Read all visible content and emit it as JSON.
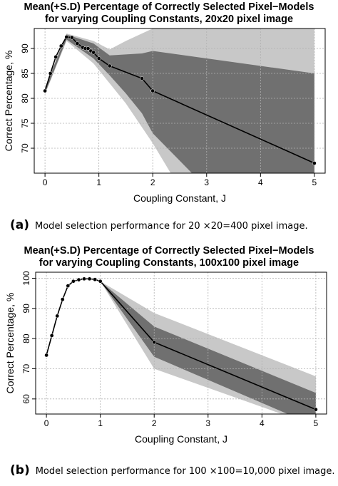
{
  "figures": [
    {
      "title_line1": "Mean(+S.D) Percentage of Correctly Selected Pixel−Models",
      "title_line2": "for varying Coupling Constants, 20x20 pixel image",
      "caption_label": "(a)",
      "caption_text": "Model selection performance for 20 ×20=400 pixel image."
    },
    {
      "title_line1": "Mean(+S.D) Percentage of Correctly Selected Pixel−Models",
      "title_line2": "for varying Coupling Constants, 100x100 pixel image",
      "caption_label": "(b)",
      "caption_text": "Model selection performance for 100 ×100=10,000 pixel image."
    }
  ],
  "chart_data": [
    {
      "type": "line",
      "title": "Mean(+S.D) Percentage of Correctly Selected Pixel−Models for varying Coupling Constants, 20x20 pixel image",
      "xlabel": "Coupling Constant, J",
      "ylabel": "Correct Percentage, %",
      "xlim": [
        -0.2,
        5.2
      ],
      "ylim": [
        65,
        94
      ],
      "xticks": [
        0,
        1,
        2,
        3,
        4,
        5
      ],
      "yticks": [
        70,
        75,
        80,
        85,
        90
      ],
      "grid": true,
      "series": [
        {
          "x": [
            0,
            0.1,
            0.2,
            0.3,
            0.4,
            0.5,
            0.6,
            0.7,
            0.75,
            0.8,
            0.85,
            0.9,
            1.0,
            1.2,
            1.8,
            2.0,
            5.0
          ],
          "y": [
            81.5,
            85.0,
            88.3,
            90.5,
            92.3,
            92.2,
            91.0,
            90.2,
            90.0,
            90.0,
            89.5,
            89.2,
            88.0,
            86.5,
            84.0,
            81.5,
            67.0
          ],
          "sd1_band": {
            "x": [
              0,
              0.4,
              0.9,
              1.2,
              1.5,
              1.8,
              2.0,
              3.0,
              4.0,
              5.0
            ],
            "upper": [
              82,
              92.8,
              91.0,
              88.6,
              88.8,
              89.0,
              89.5,
              88.0,
              86.5,
              85.0
            ],
            "lower": [
              81,
              91.8,
              88.0,
              84.6,
              81.0,
              77.0,
              73.0,
              62.0,
              62.0,
              62.0
            ]
          },
          "sd2_band": {
            "x": [
              0,
              0.4,
              0.9,
              1.2,
              1.5,
              2.0,
              2.5,
              3.0,
              4.0,
              5.0
            ],
            "upper": [
              82.2,
              93.0,
              91.5,
              89.8,
              91.5,
              94.0,
              94.0,
              94.0,
              94.0,
              94.0
            ],
            "lower": [
              80.8,
              91.5,
              87.0,
              83.0,
              79.0,
              71.0,
              62.0,
              62.0,
              62.0,
              62.0
            ]
          }
        }
      ]
    },
    {
      "type": "line",
      "title": "Mean(+S.D) Percentage of Correctly Selected Pixel−Models for varying Coupling Constants, 100x100 pixel image",
      "xlabel": "Coupling Constant, J",
      "ylabel": "Correct Percentage, %",
      "xlim": [
        -0.2,
        5.2
      ],
      "ylim": [
        55,
        102
      ],
      "xticks": [
        0,
        1,
        2,
        3,
        4,
        5
      ],
      "yticks": [
        60,
        70,
        80,
        90,
        100
      ],
      "grid": true,
      "series": [
        {
          "x": [
            0,
            0.1,
            0.2,
            0.3,
            0.4,
            0.5,
            0.6,
            0.7,
            0.8,
            0.9,
            1.0,
            2.0,
            5.0
          ],
          "y": [
            74.5,
            81.0,
            87.5,
            93.0,
            97.5,
            99.0,
            99.5,
            99.8,
            99.8,
            99.6,
            99.0,
            78.8,
            56.5
          ],
          "sd1_band": {
            "x": [
              0,
              1.0,
              2.0,
              5.0
            ],
            "upper": [
              74.5,
              99.0,
              84.0,
              62.0
            ],
            "lower": [
              74.5,
              99.0,
              74.0,
              51.0
            ]
          },
          "sd2_band": {
            "x": [
              0,
              1.0,
              2.0,
              5.0
            ],
            "upper": [
              74.5,
              99.0,
              88.5,
              67.5
            ],
            "lower": [
              74.5,
              99.0,
              70.0,
              51.0
            ]
          }
        }
      ]
    }
  ],
  "colors": {
    "band_outer": "#c8c8c8",
    "band_inner": "#707070",
    "line": "#000000",
    "grid": "#b0b0b0"
  }
}
